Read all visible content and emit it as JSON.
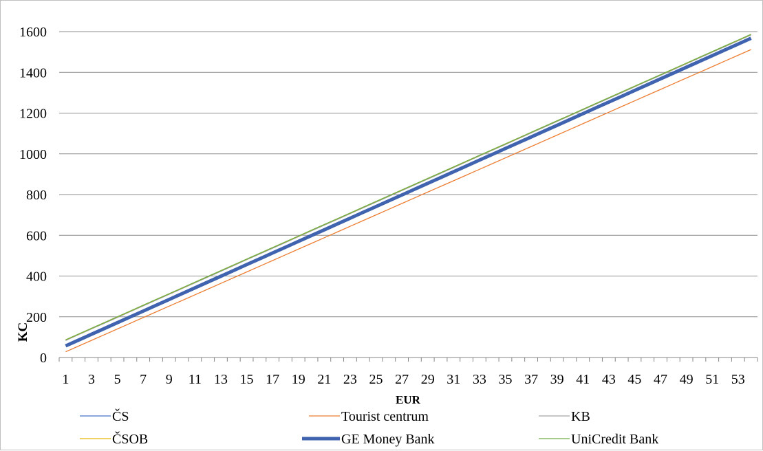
{
  "chart_data": {
    "type": "line",
    "title": "",
    "xlabel": "EUR",
    "ylabel": "KC",
    "x": [
      1,
      2,
      3,
      4,
      5,
      6,
      7,
      8,
      9,
      10,
      11,
      12,
      13,
      14,
      15,
      16,
      17,
      18,
      19,
      20,
      21,
      22,
      23,
      24,
      25,
      26,
      27,
      28,
      29,
      30,
      31,
      32,
      33,
      34,
      35,
      36,
      37,
      38,
      39,
      40,
      41,
      42,
      43,
      44,
      45,
      46,
      47,
      48,
      49,
      50,
      51,
      52,
      53,
      54
    ],
    "x_tick_labels": [
      "1",
      "3",
      "5",
      "7",
      "9",
      "11",
      "13",
      "15",
      "17",
      "19",
      "21",
      "23",
      "25",
      "27",
      "29",
      "31",
      "33",
      "35",
      "37",
      "39",
      "41",
      "43",
      "45",
      "47",
      "49",
      "51",
      "53"
    ],
    "ylim": [
      0,
      1600
    ],
    "y_ticks": [
      0,
      200,
      400,
      600,
      800,
      1000,
      1200,
      1400,
      1600
    ],
    "grid": "horizontal",
    "legend_position": "bottom",
    "series": [
      {
        "name": "ČS",
        "color": "#4472C4",
        "stroke": 1.3,
        "start": 84,
        "slope": 28.3
      },
      {
        "name": "Tourist centrum",
        "color": "#ED7D31",
        "stroke": 1.3,
        "start": 28,
        "slope": 28.0
      },
      {
        "name": "KB",
        "color": "#A5A5A5",
        "stroke": 1.3,
        "start": 85,
        "slope": 28.3
      },
      {
        "name": "ČSOB",
        "color": "#E6B800",
        "stroke": 1.3,
        "start": 86,
        "slope": 28.3
      },
      {
        "name": "GE Money Bank",
        "color": "#3F63AF",
        "stroke": 5,
        "start": 57,
        "slope": 28.5
      },
      {
        "name": "UniCredit Bank",
        "color": "#70AD47",
        "stroke": 1.3,
        "start": 87,
        "slope": 28.3
      }
    ]
  }
}
